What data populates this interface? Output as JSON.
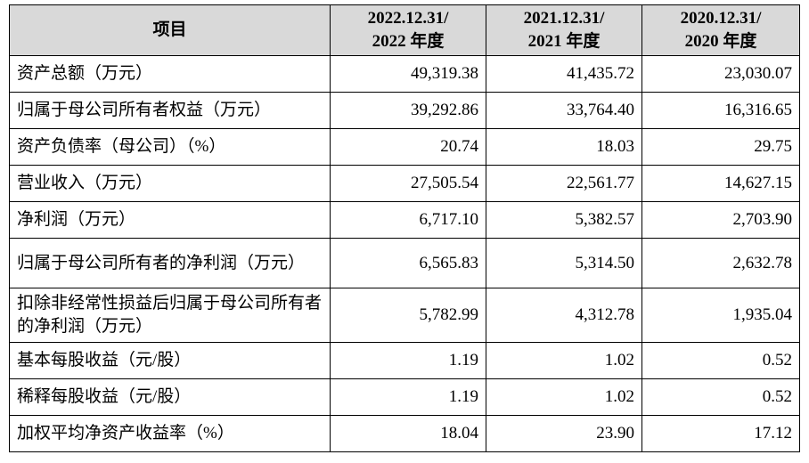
{
  "table": {
    "header": [
      [
        "项目"
      ],
      [
        "2022.12.31/",
        "2022 年度"
      ],
      [
        "2021.12.31/",
        "2021 年度"
      ],
      [
        "2020.12.31/",
        "2020 年度"
      ]
    ],
    "rows": [
      [
        "资产总额（万元）",
        "49,319.38",
        "41,435.72",
        "23,030.07"
      ],
      [
        "归属于母公司所有者权益（万元）",
        "39,292.86",
        "33,764.40",
        "16,316.65"
      ],
      [
        "资产负债率（母公司）（%）",
        "20.74",
        "18.03",
        "29.75"
      ],
      [
        "营业收入（万元）",
        "27,505.54",
        "22,561.77",
        "14,627.15"
      ],
      [
        "净利润（万元）",
        "6,717.10",
        "5,382.57",
        "2,703.90"
      ],
      [
        "归属于母公司所有者的净利润（万元）",
        "6,565.83",
        "5,314.50",
        "2,632.78"
      ],
      [
        "扣除非经常性损益后归属于母公司所有者的净利润（万元）",
        "5,782.99",
        "4,312.78",
        "1,935.04"
      ],
      [
        "基本每股收益（元/股）",
        "1.19",
        "1.02",
        "0.52"
      ],
      [
        "稀释每股收益（元/股）",
        "1.19",
        "1.02",
        "0.52"
      ],
      [
        "加权平均净资产收益率（%）",
        "18.04",
        "23.90",
        "17.12"
      ]
    ]
  }
}
